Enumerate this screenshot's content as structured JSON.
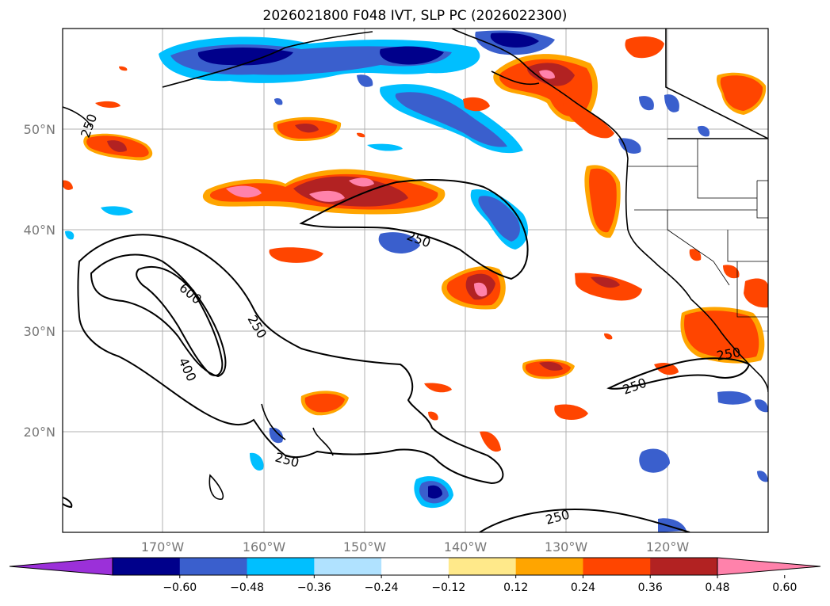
{
  "title": "2026021800 F048 IVT, SLP PC (2026022300)",
  "lat_labels": [
    "50°N",
    "40°N",
    "30°N",
    "20°N"
  ],
  "lon_labels": [
    "170°W",
    "160°W",
    "150°W",
    "140°W",
    "130°W",
    "120°W"
  ],
  "contour_labels": [
    "250",
    "250",
    "600",
    "250",
    "400",
    "250",
    "250",
    "250",
    "250"
  ],
  "colorbar": {
    "ticks": [
      "−0.60",
      "−0.48",
      "−0.36",
      "−0.24",
      "−0.12",
      "0.12",
      "0.24",
      "0.36",
      "0.48",
      "0.60"
    ],
    "colors": [
      "#9b30d9",
      "#00008b",
      "#3a5fcd",
      "#00bfff",
      "#b0e2ff",
      "#ffffff",
      "#ffe98a",
      "#ffa500",
      "#ff4500",
      "#b22222",
      "#ff82ab"
    ],
    "extend": "both"
  },
  "map_extent": {
    "lon": [
      -180,
      -110
    ],
    "lat": [
      10,
      60
    ]
  }
}
